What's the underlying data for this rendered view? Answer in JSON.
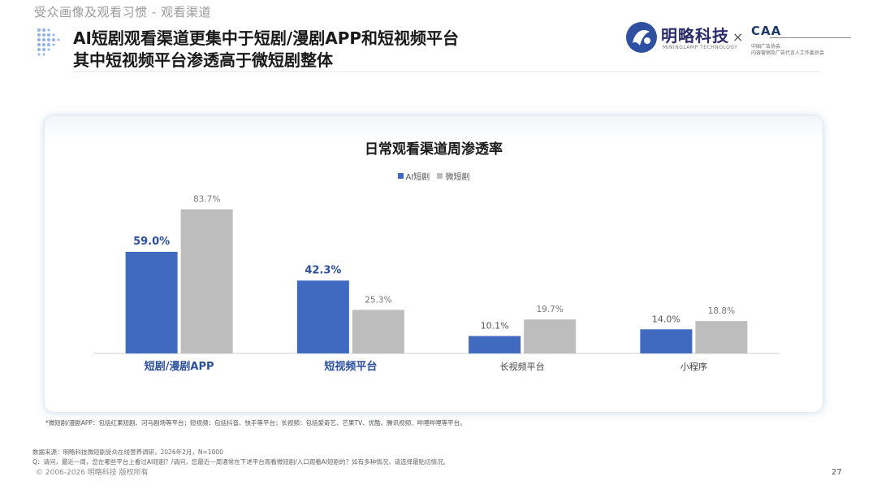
{
  "header": {
    "section_label": "受众画像及观看习惯 - 观看渠道",
    "title_line1": "AI短剧观看渠道更集中于短剧/漫剧APP和短视频平台",
    "title_line2": "其中短视频平台渗透高于微短剧整体"
  },
  "logos": {
    "minglue_name": "明略科技",
    "minglue_sub": "MININGLAMP TECHNOLOGY",
    "times": "×",
    "caa_mark": "CAA",
    "caa_line1": "中国广告协会",
    "caa_line2": "内容营销及广告代言人工作委员会"
  },
  "chart_data": {
    "type": "bar",
    "title": "日常观看渠道周渗透率",
    "categories": [
      "短剧/漫剧APP",
      "短视频平台",
      "长视频平台",
      "小程序"
    ],
    "series": [
      {
        "name": "AI短剧",
        "values": [
          59.0,
          42.3,
          10.1,
          14.0
        ],
        "labels": [
          "59.0%",
          "42.3%",
          "10.1%",
          "14.0%"
        ],
        "color": "#3f6ac0"
      },
      {
        "name": "微短剧",
        "values": [
          83.7,
          25.3,
          19.7,
          18.8
        ],
        "labels": [
          "83.7%",
          "25.3%",
          "19.7%",
          "18.8%"
        ],
        "color": "#bdbdbd"
      }
    ],
    "emphasized_categories": [
      0,
      1
    ],
    "ylim": [
      0,
      100
    ],
    "grid": false,
    "legend_position": "top-center",
    "xlabel": "",
    "ylabel": ""
  },
  "notes": {
    "footnote": "*微短剧/漫剧APP：包括红果短剧、河马剧场等平台；短视频：包括抖音、快手等平台；长视频：包括爱奇艺、芒果TV、优酷、腾讯视频、哔哩哔哩等平台。",
    "source": "数据来源：明略科技微短剧受众在线营养调研，2026年2月，N=1000",
    "question": "Q：请问，最近一周，您在哪些平台上看过AI短剧？/请问，您最近一周通常在下述平台观看微短剧/入口观看AI短剧的？如有多种情况，请选择最贴切情况。",
    "copyright": "© 2006-2026 明略科技 版权所有",
    "page_number": "27"
  }
}
